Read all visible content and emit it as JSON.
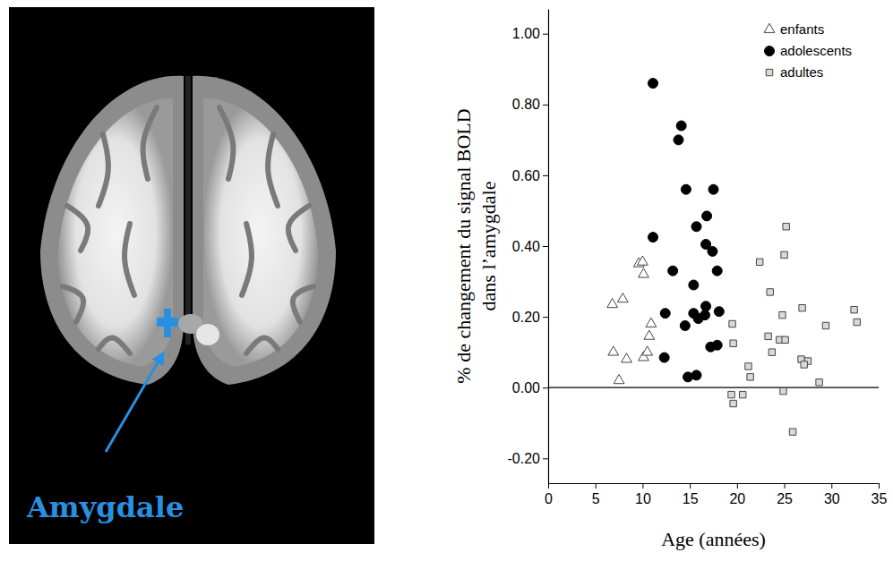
{
  "figure": {
    "label": "Amygdale"
  },
  "chart_data": {
    "type": "scatter",
    "x_label": "Age (années)",
    "y_label": "% de changement du signal BOLD dans l’amygdale",
    "xlim": [
      0,
      35
    ],
    "xticks": [
      0,
      5,
      10,
      15,
      20,
      25,
      30,
      35
    ],
    "ylim": [
      -0.27,
      1.07
    ],
    "yticks": [
      {
        "value": -0.2,
        "label": "-0.20"
      },
      {
        "value": 0,
        "label": "0.00"
      },
      {
        "value": 0.2,
        "label": "0.20"
      },
      {
        "value": 0.4,
        "label": "0.40"
      },
      {
        "value": 0.6,
        "label": "0.60"
      },
      {
        "value": 0.8,
        "label": "0.80"
      },
      {
        "value": 1,
        "label": "1.00"
      }
    ],
    "hlines": [
      0
    ],
    "grid": false,
    "legend": "upper right",
    "series": [
      {
        "name": "enfants",
        "color": "#ffffff",
        "marker": "triangle",
        "x": [
          6.8,
          7.9,
          6.9,
          8.3,
          7.5,
          9.6,
          10.0,
          10.1,
          10.1,
          10.5,
          10.9,
          10.7
        ],
        "values": [
          0.235,
          0.25,
          0.1,
          0.08,
          0.02,
          0.35,
          0.355,
          0.32,
          0.085,
          0.1,
          0.18,
          0.145
        ]
      },
      {
        "name": "adolescents",
        "color": "#000000",
        "marker": "circle",
        "x": [
          11.1,
          14.1,
          13.8,
          14.6,
          17.5,
          11.1,
          15.7,
          16.8,
          16.7,
          17.4,
          13.2,
          17.9,
          15.4,
          12.4,
          15.4,
          15.9,
          16.7,
          16.6,
          18.1,
          14.5,
          17.9,
          17.2,
          12.3,
          14.8,
          15.7
        ],
        "values": [
          0.86,
          0.74,
          0.7,
          0.56,
          0.56,
          0.425,
          0.455,
          0.485,
          0.405,
          0.385,
          0.33,
          0.33,
          0.29,
          0.21,
          0.21,
          0.195,
          0.23,
          0.205,
          0.215,
          0.175,
          0.12,
          0.115,
          0.085,
          0.03,
          0.035
        ]
      },
      {
        "name": "adultes",
        "color": "#d9d9d9",
        "marker": "square",
        "x": [
          25.2,
          25.0,
          22.4,
          23.5,
          26.9,
          32.4,
          32.7,
          29.4,
          24.8,
          19.5,
          19.6,
          23.3,
          24.5,
          25.1,
          23.7,
          26.8,
          27.5,
          27.1,
          21.2,
          21.4,
          19.4,
          19.6,
          20.6,
          24.9,
          28.7,
          25.9
        ],
        "values": [
          0.455,
          0.375,
          0.355,
          0.27,
          0.225,
          0.22,
          0.185,
          0.175,
          0.205,
          0.18,
          0.125,
          0.145,
          0.135,
          0.135,
          0.1,
          0.08,
          0.075,
          0.065,
          0.06,
          0.03,
          -0.02,
          -0.045,
          -0.02,
          -0.01,
          0.015,
          -0.125
        ]
      }
    ]
  }
}
